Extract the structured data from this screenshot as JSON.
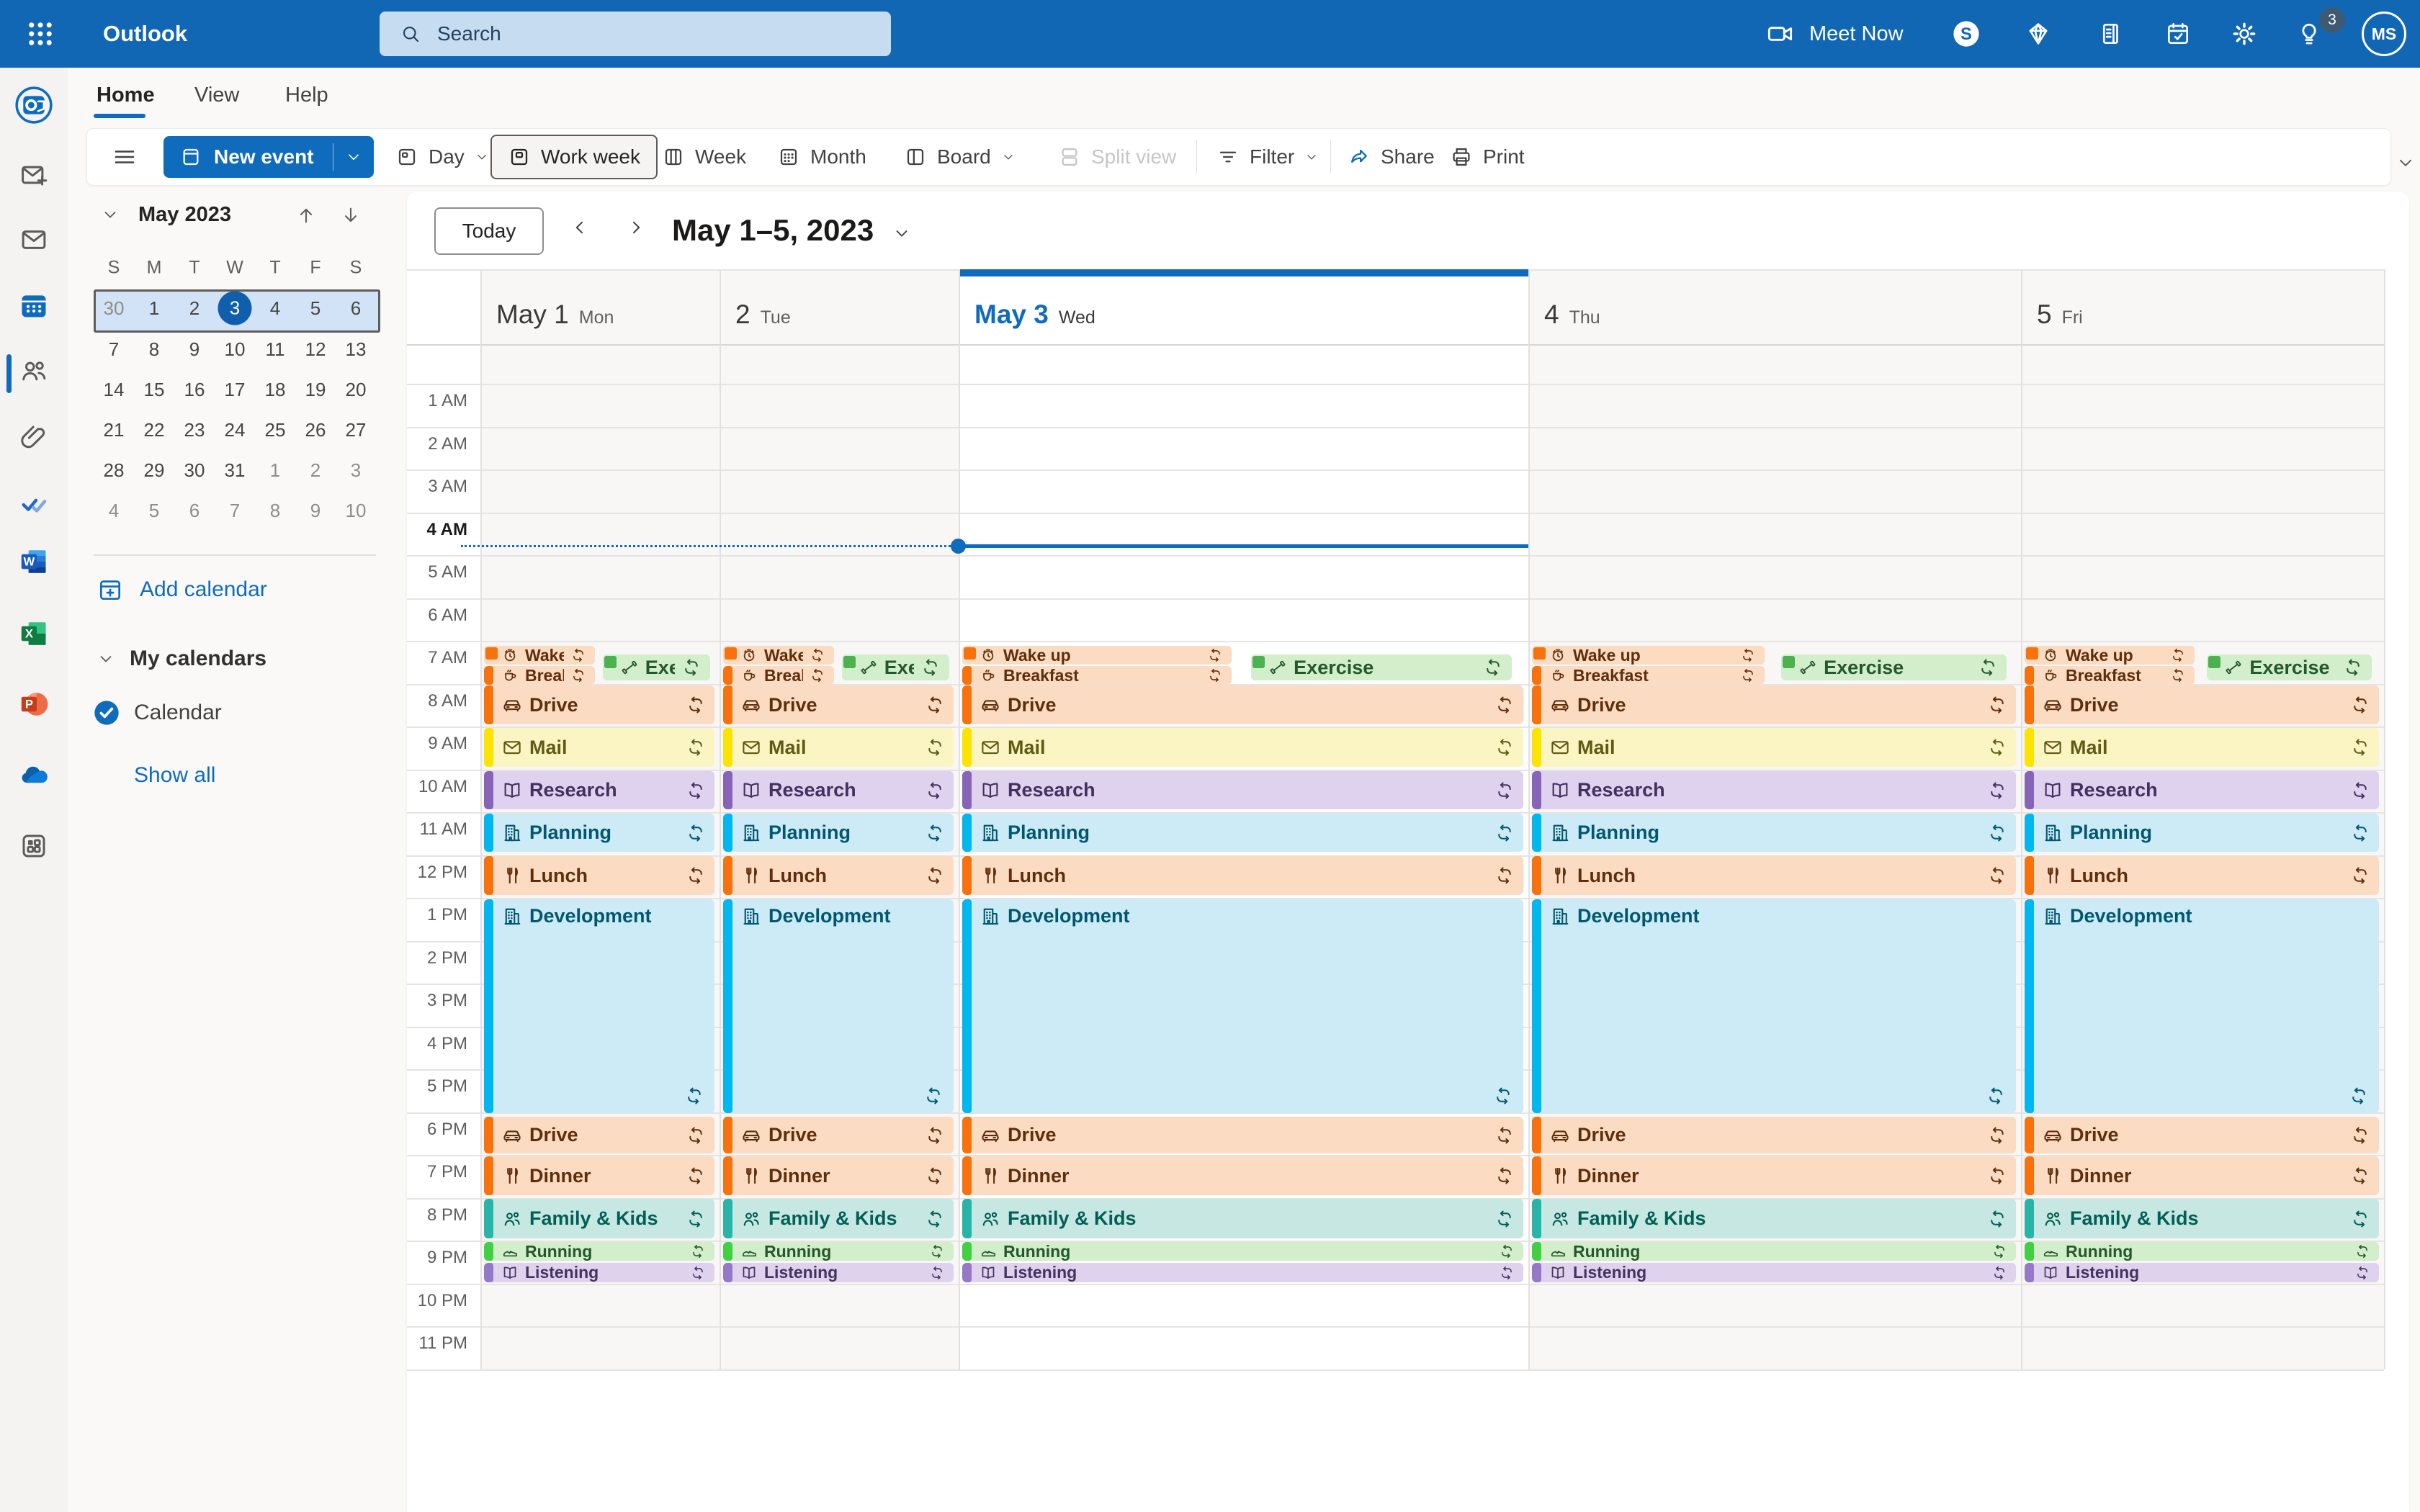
{
  "topbar": {
    "app_name": "Outlook",
    "search_placeholder": "Search",
    "meet_now_label": "Meet Now",
    "notification_count": "3",
    "avatar_initials": "MS"
  },
  "ribbon": {
    "tabs": [
      "Home",
      "View",
      "Help"
    ],
    "active_tab": "Home",
    "new_event_label": "New event",
    "views": {
      "day": "Day",
      "work_week": "Work week",
      "week": "Week",
      "month": "Month",
      "board": "Board",
      "split_view": "Split view"
    },
    "selected_view": "Work week",
    "filter_label": "Filter",
    "share_label": "Share",
    "print_label": "Print"
  },
  "sidebar": {
    "mini_calendar": {
      "title": "May 2023",
      "weekdays": [
        "S",
        "M",
        "T",
        "W",
        "T",
        "F",
        "S"
      ],
      "weeks": [
        [
          {
            "d": "30",
            "out": true
          },
          {
            "d": "1"
          },
          {
            "d": "2"
          },
          {
            "d": "3",
            "sel": true
          },
          {
            "d": "4"
          },
          {
            "d": "5"
          },
          {
            "d": "6"
          }
        ],
        [
          {
            "d": "7"
          },
          {
            "d": "8"
          },
          {
            "d": "9"
          },
          {
            "d": "10"
          },
          {
            "d": "11"
          },
          {
            "d": "12"
          },
          {
            "d": "13"
          }
        ],
        [
          {
            "d": "14"
          },
          {
            "d": "15"
          },
          {
            "d": "16"
          },
          {
            "d": "17"
          },
          {
            "d": "18"
          },
          {
            "d": "19"
          },
          {
            "d": "20"
          }
        ],
        [
          {
            "d": "21"
          },
          {
            "d": "22"
          },
          {
            "d": "23"
          },
          {
            "d": "24"
          },
          {
            "d": "25"
          },
          {
            "d": "26"
          },
          {
            "d": "27"
          }
        ],
        [
          {
            "d": "28"
          },
          {
            "d": "29"
          },
          {
            "d": "30"
          },
          {
            "d": "31"
          },
          {
            "d": "1",
            "out": true
          },
          {
            "d": "2",
            "out": true
          },
          {
            "d": "3",
            "out": true
          }
        ],
        [
          {
            "d": "4",
            "out": true
          },
          {
            "d": "5",
            "out": true
          },
          {
            "d": "6",
            "out": true
          },
          {
            "d": "7",
            "out": true
          },
          {
            "d": "8",
            "out": true
          },
          {
            "d": "9",
            "out": true
          },
          {
            "d": "10",
            "out": true
          }
        ]
      ],
      "selected_week_index": 0
    },
    "add_calendar_label": "Add calendar",
    "my_calendars_label": "My calendars",
    "calendars": [
      {
        "name": "Calendar",
        "checked": true
      }
    ],
    "show_all_label": "Show all"
  },
  "calendar": {
    "today_label": "Today",
    "range_title": "May 1–5, 2023",
    "days": [
      {
        "label": "May 1",
        "weekday": "Mon",
        "today": false
      },
      {
        "label": "2",
        "weekday": "Tue",
        "today": false
      },
      {
        "label": "May 3",
        "weekday": "Wed",
        "today": true
      },
      {
        "label": "4",
        "weekday": "Thu",
        "today": false
      },
      {
        "label": "5",
        "weekday": "Fri",
        "today": false
      }
    ],
    "hours": [
      "1 AM",
      "2 AM",
      "3 AM",
      "4 AM",
      "5 AM",
      "6 AM",
      "7 AM",
      "8 AM",
      "9 AM",
      "10 AM",
      "11 AM",
      "12 PM",
      "1 PM",
      "2 PM",
      "3 PM",
      "4 PM",
      "5 PM",
      "6 PM",
      "7 PM",
      "8 PM",
      "9 PM",
      "10 PM",
      "11 PM"
    ],
    "bold_hour": "4 AM",
    "events": [
      {
        "title": "Wake up",
        "icon": "alarm-clock",
        "color": "peach",
        "marker": "square",
        "recurring": true
      },
      {
        "title": "Exercise",
        "icon": "dumbbell",
        "color": "green",
        "marker": "square",
        "recurring": true
      },
      {
        "title": "Breakfast",
        "icon": "cup",
        "color": "peach",
        "marker": "bar",
        "recurring": true
      },
      {
        "title": "Drive",
        "icon": "car",
        "color": "peach",
        "marker": "bar",
        "recurring": true
      },
      {
        "title": "Mail",
        "icon": "envelope",
        "color": "yellow",
        "marker": "bar",
        "recurring": true
      },
      {
        "title": "Research",
        "icon": "book",
        "color": "purple",
        "marker": "bar",
        "recurring": true
      },
      {
        "title": "Planning",
        "icon": "building",
        "color": "cyan",
        "marker": "bar",
        "recurring": true
      },
      {
        "title": "Lunch",
        "icon": "utensils",
        "color": "peach",
        "marker": "bar",
        "recurring": true
      },
      {
        "title": "Development",
        "icon": "building",
        "color": "cyan",
        "marker": "bar",
        "recurring": true
      },
      {
        "title": "Drive",
        "icon": "car",
        "color": "peach",
        "marker": "bar",
        "recurring": true
      },
      {
        "title": "Dinner",
        "icon": "utensils",
        "color": "peach",
        "marker": "bar",
        "recurring": true
      },
      {
        "title": "Family & Kids",
        "icon": "family",
        "color": "mint",
        "marker": "bar",
        "recurring": true
      },
      {
        "title": "Running",
        "icon": "shoe",
        "color": "rungreen",
        "marker": "bar",
        "recurring": true
      },
      {
        "title": "Listening",
        "icon": "book",
        "color": "lavender",
        "marker": "bar",
        "recurring": true
      }
    ]
  },
  "colors": {
    "accent": "#0f6cbd",
    "topbar": "#1267b4",
    "today_indicator": "#0f6cbd",
    "event_colors": {
      "peach": {
        "bg": "#fbdcc2",
        "bar": "#f7720d",
        "text": "#5f2e0c"
      },
      "yellow": {
        "bg": "#fbf5c3",
        "bar": "#fde300",
        "text": "#5f5a15"
      },
      "purple": {
        "bg": "#ded2ef",
        "bar": "#8764b8",
        "text": "#43305e"
      },
      "cyan": {
        "bg": "#cdeaf7",
        "bar": "#00b7f0",
        "text": "#01586e"
      },
      "mint": {
        "bg": "#c7e8e2",
        "bar": "#28b5a7",
        "text": "#005f56"
      },
      "green": {
        "bg": "#d2eecb",
        "bar": "#4db151",
        "text": "#24582a"
      },
      "rungreen": {
        "bg": "#d2eecb",
        "bar": "#41d043",
        "text": "#24582a"
      },
      "lavender": {
        "bg": "#ded2ef",
        "bar": "#9579c8",
        "text": "#44325f"
      }
    }
  }
}
